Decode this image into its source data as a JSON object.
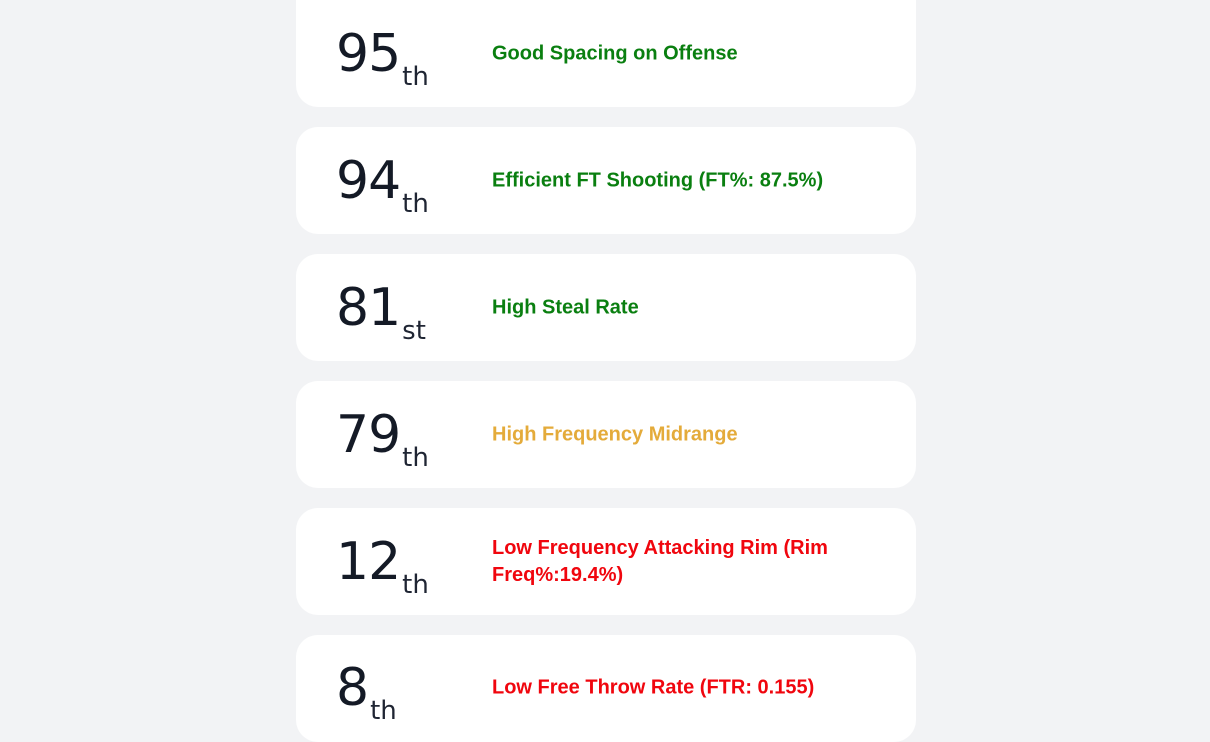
{
  "colors": {
    "good": "#0a7f10",
    "neutral": "#e4ab3a",
    "bad": "#f0060e"
  },
  "cards": [
    {
      "number": "95",
      "suffix": "th",
      "text": "Good Spacing on Offense",
      "tone": "good"
    },
    {
      "number": "94",
      "suffix": "th",
      "text": "Efficient FT Shooting (FT%: 87.5%)",
      "tone": "good"
    },
    {
      "number": "81",
      "suffix": "st",
      "text": "High Steal Rate",
      "tone": "good"
    },
    {
      "number": "79",
      "suffix": "th",
      "text": "High Frequency Midrange",
      "tone": "neutral"
    },
    {
      "number": "12",
      "suffix": "th",
      "text": "Low Frequency Attacking Rim (Rim Freq%:19.4%)",
      "tone": "bad"
    },
    {
      "number": "8",
      "suffix": "th",
      "text": "Low Free Throw Rate (FTR: 0.155)",
      "tone": "bad"
    }
  ]
}
